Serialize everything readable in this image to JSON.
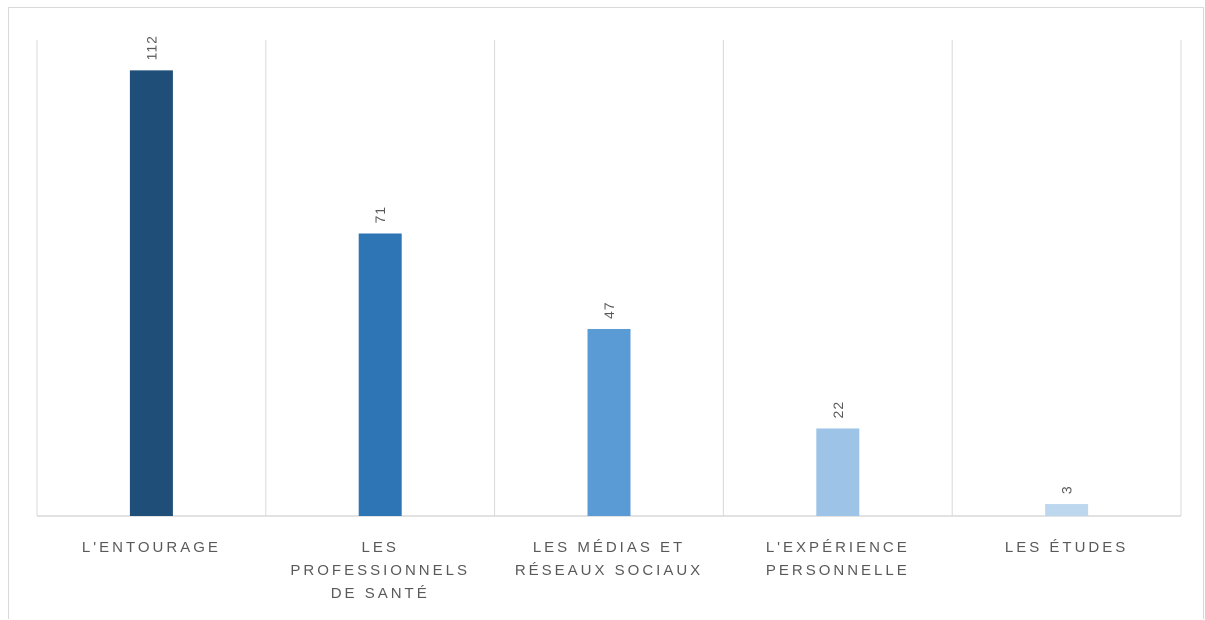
{
  "chart_data": {
    "type": "bar",
    "categories": [
      [
        "L'ENTOURAGE"
      ],
      [
        "LES",
        "PROFESSIONNELS",
        "DE SANTÉ"
      ],
      [
        "LES MÉDIAS ET",
        "RÉSEAUX SOCIAUX"
      ],
      [
        "L'EXPÉRIENCE",
        "PERSONNELLE"
      ],
      [
        "LES ÉTUDES"
      ]
    ],
    "values": [
      112,
      71,
      47,
      22,
      3
    ],
    "data_labels": [
      "112",
      "71",
      "47",
      "22",
      "3"
    ],
    "colors": [
      "#1f4e79",
      "#2e75b6",
      "#5b9bd5",
      "#9dc3e6",
      "#bdd7ee"
    ],
    "ylim": [
      0,
      120
    ],
    "grid": "vertical category separators",
    "axis_color": "#d9d9d9",
    "label_color": "#595959"
  }
}
